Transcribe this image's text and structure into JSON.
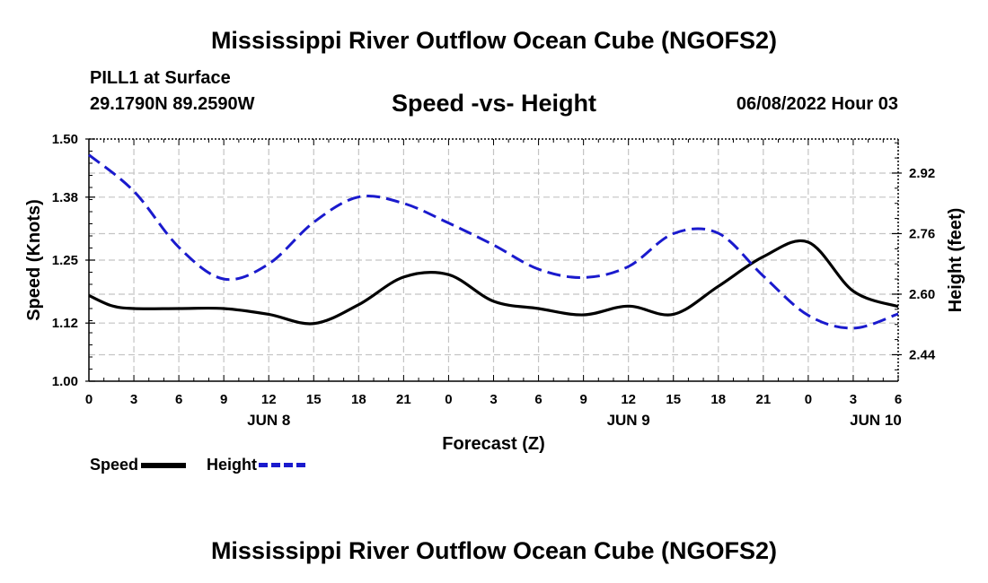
{
  "header": {
    "title": "Mississippi River Outflow Ocean Cube (NGOFS2)",
    "station": "PILL1 at Surface",
    "coords": "29.1790N  89.2590W",
    "subtitle": "Speed -vs- Height",
    "timestamp": "06/08/2022 Hour 03"
  },
  "footer": {
    "title": "Mississippi River Outflow Ocean Cube (NGOFS2)"
  },
  "legend": {
    "speed_label": "Speed",
    "height_label": "Height"
  },
  "chart_data": {
    "type": "line",
    "title": "Speed -vs- Height",
    "xlabel": "Forecast (Z)",
    "ylabel": "Speed (Knots)",
    "ylabel_right": "Height (feet)",
    "xlim": [
      0,
      54
    ],
    "ylim": [
      1.0,
      1.5
    ],
    "ylim_right": [
      2.37,
      3.01
    ],
    "grid": true,
    "x_ticks": [
      0,
      3,
      6,
      9,
      12,
      15,
      18,
      21,
      24,
      27,
      30,
      33,
      36,
      39,
      42,
      45,
      48,
      51,
      54
    ],
    "x_tick_labels": [
      "0",
      "3",
      "6",
      "9",
      "12",
      "15",
      "18",
      "21",
      "0",
      "3",
      "6",
      "9",
      "12",
      "15",
      "18",
      "21",
      "0",
      "3",
      "6"
    ],
    "y_ticks": [
      1.0,
      1.12,
      1.25,
      1.38,
      1.5
    ],
    "y_tick_labels": [
      "1.00",
      "1.12",
      "1.25",
      "1.38",
      "1.50"
    ],
    "y_right_ticks": [
      2.44,
      2.6,
      2.76,
      2.92
    ],
    "y_right_tick_labels": [
      "2.44",
      "2.60",
      "2.76",
      "2.92"
    ],
    "day_labels": [
      {
        "x": 12,
        "label": "JUN 8"
      },
      {
        "x": 36,
        "label": "JUN 9"
      },
      {
        "x": 52.5,
        "label": "JUN 10"
      }
    ],
    "series": [
      {
        "name": "Speed",
        "axis": "left",
        "color": "#000000",
        "style": "solid",
        "x": [
          0,
          1.5,
          3,
          6,
          9,
          12,
          15,
          18,
          21,
          24,
          27,
          30,
          33,
          36,
          39,
          42,
          45,
          48,
          51,
          54
        ],
        "values": [
          1.177,
          1.156,
          1.15,
          1.15,
          1.15,
          1.138,
          1.119,
          1.158,
          1.215,
          1.22,
          1.165,
          1.15,
          1.137,
          1.155,
          1.138,
          1.196,
          1.257,
          1.287,
          1.186,
          1.154
        ]
      },
      {
        "name": "Height",
        "axis": "right",
        "color": "#1a1acd",
        "style": "dashed",
        "x": [
          0,
          3,
          6,
          9,
          12,
          15,
          18,
          21,
          24,
          27,
          30,
          33,
          36,
          39,
          42,
          45,
          48,
          51,
          54
        ],
        "values": [
          2.968,
          2.872,
          2.724,
          2.64,
          2.68,
          2.79,
          2.857,
          2.84,
          2.788,
          2.73,
          2.666,
          2.644,
          2.673,
          2.76,
          2.761,
          2.648,
          2.544,
          2.51,
          2.548
        ]
      }
    ]
  }
}
